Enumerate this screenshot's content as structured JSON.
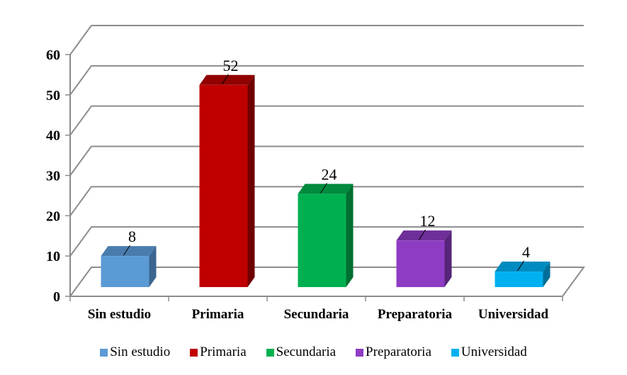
{
  "chart_data": {
    "type": "bar",
    "style": "3d-column",
    "title": "",
    "xlabel": "",
    "ylabel": "",
    "categories": [
      "Sin estudio",
      "Primaria",
      "Secundaria",
      "Preparatoria",
      "Universidad"
    ],
    "values": [
      8,
      52,
      24,
      12,
      4
    ],
    "data_labels": [
      "8",
      "52",
      "24",
      "12",
      "4"
    ],
    "colors": [
      "#5B9BD5",
      "#C00000",
      "#00B050",
      "#8E3CC4",
      "#00B0F0"
    ],
    "top_colors": [
      "#4A7DAE",
      "#900000",
      "#008A3E",
      "#6F2E99",
      "#008BC0"
    ],
    "side_colors": [
      "#3B6590",
      "#700000",
      "#006E30",
      "#56247A",
      "#006E98"
    ],
    "ylim": [
      0,
      60
    ],
    "yticks": [
      "0",
      "10",
      "20",
      "30",
      "40",
      "50",
      "60"
    ],
    "grid": true,
    "legend_position": "bottom",
    "legend": [
      "Sin estudio",
      "Primaria",
      "Secundaria",
      "Preparatoria",
      "Universidad"
    ]
  }
}
